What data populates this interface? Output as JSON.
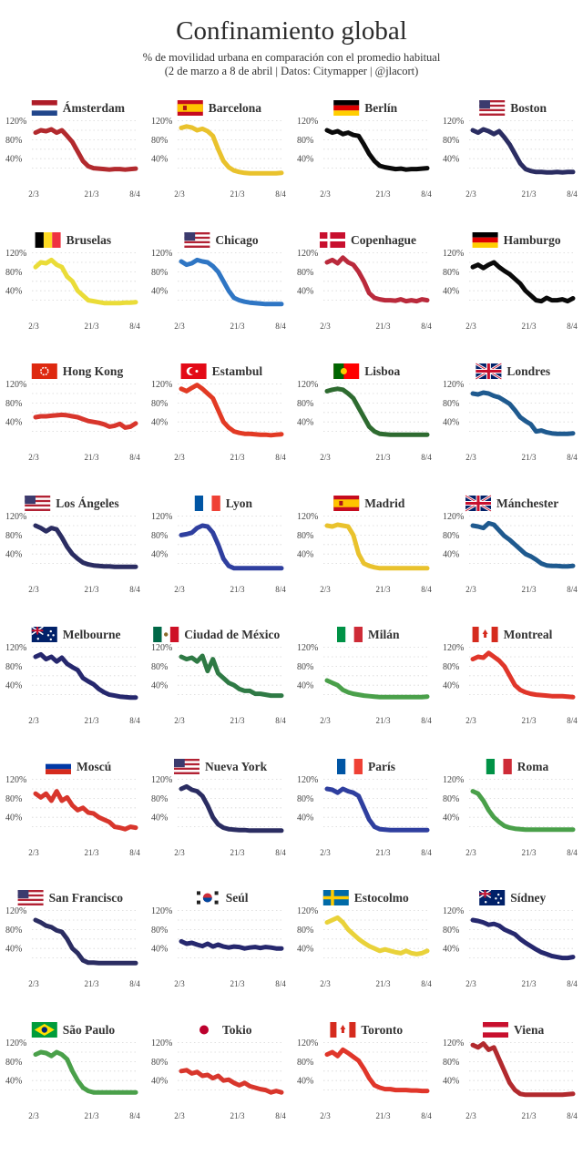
{
  "title": "Confinamiento global",
  "subtitle_line1": "% de movilidad urbana en comparación con el promedio habitual",
  "subtitle_line2": "(2 de marzo a 8 de abril | Datos: Citymapper | @jlacort)",
  "chart_data": {
    "type": "line",
    "title": "Confinamiento global",
    "ylabel": "% de movilidad urbana",
    "ylim": [
      0,
      125
    ],
    "yticks": [
      "120%",
      "80%",
      "40%"
    ],
    "xticks": [
      "2/3",
      "21/3",
      "8/4"
    ],
    "grid": true,
    "panels": [
      {
        "city": "Ámsterdam",
        "flag": "netherlands",
        "color": "#b22a2e",
        "values": [
          95,
          100,
          98,
          102,
          95,
          100,
          88,
          75,
          55,
          35,
          24,
          20,
          19,
          18,
          17,
          18,
          18,
          17,
          18,
          19
        ]
      },
      {
        "city": "Barcelona",
        "flag": "spain",
        "color": "#e9c22d",
        "values": [
          105,
          108,
          106,
          100,
          103,
          98,
          88,
          60,
          35,
          22,
          15,
          12,
          10,
          9,
          9,
          9,
          9,
          9,
          9,
          10
        ]
      },
      {
        "city": "Berlín",
        "flag": "germany",
        "color": "#0a0a0a",
        "values": [
          100,
          95,
          98,
          92,
          95,
          90,
          88,
          70,
          50,
          35,
          25,
          22,
          20,
          18,
          19,
          17,
          18,
          18,
          19,
          20
        ]
      },
      {
        "city": "Boston",
        "flag": "usa",
        "color": "#2b2d62",
        "values": [
          100,
          95,
          102,
          98,
          92,
          98,
          85,
          70,
          50,
          30,
          18,
          14,
          12,
          12,
          11,
          11,
          12,
          11,
          12,
          12
        ]
      },
      {
        "city": "Bruselas",
        "flag": "belgium",
        "color": "#eadc38",
        "values": [
          90,
          100,
          98,
          105,
          95,
          90,
          70,
          60,
          40,
          30,
          20,
          18,
          16,
          14,
          14,
          14,
          14,
          15,
          15,
          16
        ]
      },
      {
        "city": "Chicago",
        "flag": "usa",
        "color": "#2f76c4",
        "values": [
          102,
          95,
          98,
          105,
          102,
          100,
          92,
          80,
          60,
          40,
          25,
          20,
          17,
          15,
          14,
          13,
          12,
          12,
          12,
          12
        ]
      },
      {
        "city": "Copenhague",
        "flag": "denmark",
        "color": "#ba2a3c",
        "values": [
          100,
          105,
          98,
          110,
          100,
          95,
          80,
          60,
          35,
          25,
          22,
          20,
          20,
          19,
          22,
          18,
          20,
          18,
          22,
          20
        ]
      },
      {
        "city": "Hamburgo",
        "flag": "germany",
        "color": "#0a0a0a",
        "values": [
          90,
          95,
          88,
          95,
          100,
          90,
          82,
          75,
          65,
          55,
          40,
          30,
          20,
          18,
          25,
          20,
          20,
          22,
          18,
          24
        ]
      },
      {
        "city": "Hong Kong",
        "flag": "hongkong",
        "color": "#d8362c",
        "values": [
          50,
          52,
          52,
          53,
          54,
          55,
          54,
          52,
          50,
          46,
          42,
          40,
          38,
          35,
          30,
          32,
          36,
          28,
          30,
          37
        ]
      },
      {
        "city": "Estambul",
        "flag": "turkey",
        "color": "#e23a24",
        "values": [
          110,
          105,
          112,
          118,
          110,
          100,
          90,
          65,
          40,
          28,
          20,
          17,
          15,
          15,
          14,
          13,
          13,
          12,
          13,
          14
        ]
      },
      {
        "city": "Lisboa",
        "flag": "portugal",
        "color": "#2e6b30",
        "values": [
          105,
          108,
          110,
          108,
          100,
          90,
          70,
          50,
          30,
          20,
          15,
          14,
          13,
          13,
          13,
          13,
          13,
          13,
          13,
          13
        ]
      },
      {
        "city": "Londres",
        "flag": "uk",
        "color": "#1f5a8f",
        "values": [
          100,
          98,
          102,
          100,
          95,
          92,
          85,
          78,
          65,
          50,
          42,
          35,
          20,
          22,
          18,
          16,
          15,
          15,
          15,
          16
        ]
      },
      {
        "city": "Los Ángeles",
        "flag": "usa",
        "color": "#2b2d62",
        "values": [
          100,
          95,
          88,
          95,
          92,
          75,
          55,
          40,
          30,
          22,
          18,
          16,
          15,
          14,
          14,
          13,
          13,
          13,
          13,
          13
        ]
      },
      {
        "city": "Lyon",
        "flag": "france",
        "color": "#2f3f9f",
        "values": [
          80,
          82,
          85,
          95,
          100,
          98,
          85,
          60,
          30,
          15,
          10,
          10,
          10,
          10,
          10,
          10,
          10,
          10,
          10,
          10
        ]
      },
      {
        "city": "Madrid",
        "flag": "spain",
        "color": "#e9c22d",
        "values": [
          100,
          98,
          102,
          100,
          98,
          80,
          40,
          20,
          15,
          12,
          10,
          10,
          10,
          10,
          10,
          10,
          10,
          10,
          10,
          10
        ]
      },
      {
        "city": "Mánchester",
        "flag": "uk",
        "color": "#1f5a8f",
        "values": [
          100,
          98,
          95,
          105,
          102,
          90,
          78,
          70,
          60,
          50,
          40,
          35,
          28,
          20,
          16,
          15,
          15,
          14,
          14,
          15
        ]
      },
      {
        "city": "Melbourne",
        "flag": "australia",
        "color": "#26286e",
        "values": [
          100,
          105,
          95,
          100,
          90,
          98,
          85,
          78,
          72,
          55,
          48,
          42,
          32,
          25,
          20,
          18,
          16,
          15,
          14,
          14
        ]
      },
      {
        "city": "Ciudad de México",
        "flag": "mexico",
        "color": "#2f7a45",
        "values": [
          100,
          95,
          98,
          90,
          102,
          70,
          95,
          65,
          55,
          45,
          40,
          32,
          28,
          28,
          22,
          22,
          20,
          18,
          18,
          18
        ]
      },
      {
        "city": "Milán",
        "flag": "italy",
        "color": "#4aa04a",
        "values": [
          50,
          45,
          40,
          30,
          25,
          22,
          20,
          18,
          17,
          16,
          15,
          15,
          15,
          15,
          15,
          15,
          15,
          15,
          15,
          16
        ]
      },
      {
        "city": "Montreal",
        "flag": "canada",
        "color": "#e0362a",
        "values": [
          95,
          100,
          98,
          108,
          100,
          92,
          80,
          60,
          40,
          30,
          25,
          22,
          20,
          19,
          18,
          17,
          17,
          17,
          16,
          15
        ]
      },
      {
        "city": "Moscú",
        "flag": "russia",
        "color": "#d8362c",
        "values": [
          90,
          82,
          90,
          75,
          95,
          75,
          82,
          65,
          55,
          60,
          50,
          48,
          40,
          35,
          30,
          20,
          18,
          15,
          20,
          18
        ]
      },
      {
        "city": "Nueva York",
        "flag": "usa",
        "color": "#2b2d62",
        "values": [
          100,
          105,
          98,
          95,
          85,
          65,
          40,
          25,
          18,
          15,
          14,
          13,
          13,
          12,
          12,
          12,
          12,
          12,
          12,
          12
        ]
      },
      {
        "city": "París",
        "flag": "france",
        "color": "#2f3f9f",
        "values": [
          100,
          98,
          92,
          100,
          95,
          92,
          85,
          60,
          35,
          20,
          15,
          14,
          13,
          13,
          13,
          13,
          13,
          13,
          13,
          13
        ]
      },
      {
        "city": "Roma",
        "flag": "italy",
        "color": "#4aa04a",
        "values": [
          95,
          90,
          75,
          55,
          40,
          30,
          22,
          18,
          16,
          15,
          14,
          14,
          14,
          14,
          14,
          14,
          14,
          14,
          14,
          14
        ]
      },
      {
        "city": "San Francisco",
        "flag": "usa",
        "color": "#2b2d62",
        "values": [
          100,
          95,
          88,
          85,
          78,
          75,
          60,
          40,
          30,
          15,
          10,
          10,
          9,
          9,
          9,
          9,
          9,
          9,
          9,
          9
        ]
      },
      {
        "city": "Seúl",
        "flag": "korea",
        "color": "#26286e",
        "values": [
          55,
          50,
          52,
          48,
          45,
          50,
          44,
          48,
          44,
          42,
          44,
          43,
          40,
          42,
          43,
          41,
          43,
          42,
          40,
          40
        ]
      },
      {
        "city": "Estocolmo",
        "flag": "sweden",
        "color": "#e9d23a",
        "values": [
          95,
          100,
          105,
          95,
          80,
          70,
          60,
          52,
          45,
          40,
          35,
          38,
          35,
          32,
          30,
          35,
          30,
          28,
          30,
          35
        ]
      },
      {
        "city": "Sídney",
        "flag": "australia",
        "color": "#26286e",
        "values": [
          100,
          98,
          95,
          90,
          92,
          88,
          80,
          75,
          70,
          60,
          52,
          45,
          38,
          32,
          28,
          24,
          22,
          20,
          20,
          22
        ]
      },
      {
        "city": "São Paulo",
        "flag": "brazil",
        "color": "#4aa04a",
        "values": [
          95,
          100,
          98,
          92,
          100,
          95,
          85,
          60,
          40,
          25,
          18,
          15,
          15,
          15,
          15,
          15,
          15,
          15,
          15,
          15
        ]
      },
      {
        "city": "Tokio",
        "flag": "japan",
        "color": "#d8362c",
        "values": [
          60,
          62,
          55,
          58,
          50,
          52,
          45,
          50,
          40,
          42,
          35,
          30,
          35,
          28,
          25,
          22,
          20,
          15,
          18,
          15
        ]
      },
      {
        "city": "Toronto",
        "flag": "canada",
        "color": "#e0362a",
        "values": [
          95,
          100,
          92,
          105,
          98,
          90,
          82,
          65,
          45,
          30,
          25,
          22,
          22,
          20,
          20,
          20,
          19,
          19,
          18,
          18
        ]
      },
      {
        "city": "Viena",
        "flag": "austria",
        "color": "#b22a2e",
        "values": [
          115,
          110,
          118,
          105,
          110,
          85,
          60,
          35,
          20,
          12,
          10,
          10,
          10,
          10,
          10,
          10,
          10,
          10,
          11,
          12
        ]
      }
    ]
  }
}
